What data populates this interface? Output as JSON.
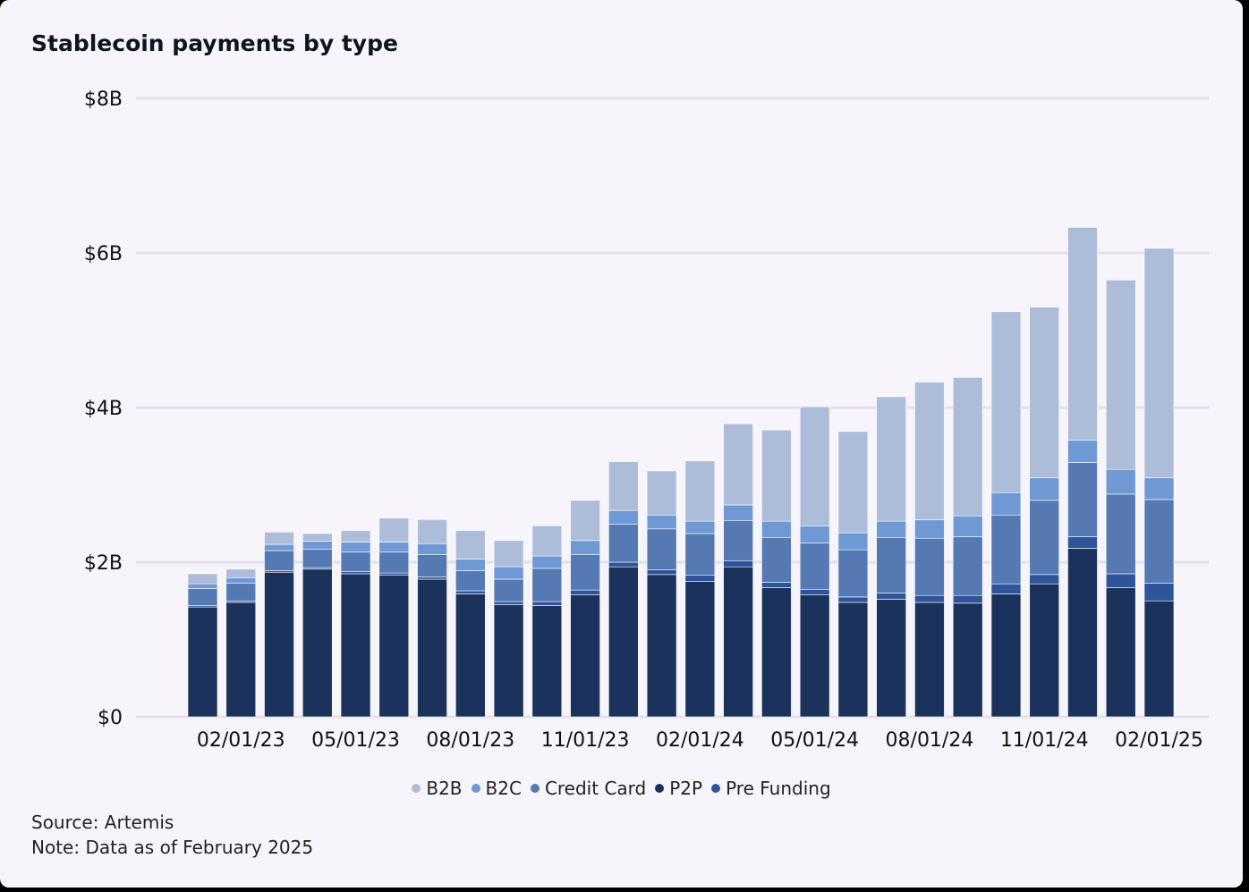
{
  "title": "Stablecoin payments by type",
  "source": "Source: Artemis",
  "note": "Note: Data as of February 2025",
  "colors": {
    "B2B": "#adbdd9",
    "B2C": "#6f99d5",
    "Credit Card": "#5579b3",
    "P2P": "#1b335c",
    "Pre Funding": "#2e559b",
    "grid": "#e3e0ea"
  },
  "chart_data": {
    "type": "bar",
    "stacked": true,
    "title": "Stablecoin payments by type",
    "xlabel": "",
    "ylabel": "",
    "ylim": [
      0,
      8
    ],
    "y_unit": "billion USD",
    "y_ticks": [
      0,
      2,
      4,
      6,
      8
    ],
    "y_tick_labels": [
      "$0",
      "$2B",
      "$4B",
      "$6B",
      "$8B"
    ],
    "x_tick_labels": [
      "02/01/23",
      "05/01/23",
      "08/01/23",
      "11/01/23",
      "02/01/24",
      "05/01/24",
      "08/01/24",
      "11/01/24",
      "02/01/25"
    ],
    "grid": true,
    "legend_position": "bottom",
    "categories": [
      "01/01/23",
      "02/01/23",
      "03/01/23",
      "04/01/23",
      "05/01/23",
      "06/01/23",
      "07/01/23",
      "08/01/23",
      "09/01/23",
      "10/01/23",
      "11/01/23",
      "12/01/23",
      "01/01/24",
      "02/01/24",
      "03/01/24",
      "04/01/24",
      "05/01/24",
      "06/01/24",
      "07/01/24",
      "08/01/24",
      "09/01/24",
      "10/01/24",
      "11/01/24",
      "12/01/24",
      "01/01/25",
      "02/01/25"
    ],
    "series": [
      {
        "name": "P2P",
        "values": [
          1.42,
          1.48,
          1.87,
          1.91,
          1.85,
          1.83,
          1.78,
          1.59,
          1.45,
          1.44,
          1.58,
          1.94,
          1.84,
          1.75,
          1.94,
          1.67,
          1.58,
          1.48,
          1.52,
          1.48,
          1.47,
          1.59,
          1.72,
          2.18,
          1.67,
          1.5
        ]
      },
      {
        "name": "Pre Funding",
        "values": [
          0.02,
          0.02,
          0.02,
          0.02,
          0.03,
          0.03,
          0.03,
          0.04,
          0.04,
          0.05,
          0.06,
          0.06,
          0.06,
          0.08,
          0.08,
          0.07,
          0.07,
          0.07,
          0.08,
          0.09,
          0.1,
          0.13,
          0.12,
          0.15,
          0.18,
          0.23
        ]
      },
      {
        "name": "Credit Card",
        "values": [
          0.22,
          0.23,
          0.26,
          0.24,
          0.25,
          0.27,
          0.29,
          0.26,
          0.29,
          0.43,
          0.46,
          0.49,
          0.53,
          0.54,
          0.52,
          0.58,
          0.6,
          0.61,
          0.72,
          0.74,
          0.76,
          0.89,
          0.96,
          0.96,
          1.03,
          1.08
        ]
      },
      {
        "name": "B2C",
        "values": [
          0.06,
          0.07,
          0.08,
          0.1,
          0.13,
          0.13,
          0.14,
          0.15,
          0.16,
          0.16,
          0.18,
          0.18,
          0.18,
          0.16,
          0.2,
          0.21,
          0.22,
          0.22,
          0.21,
          0.24,
          0.27,
          0.29,
          0.29,
          0.29,
          0.32,
          0.28
        ]
      },
      {
        "name": "B2B",
        "values": [
          0.13,
          0.11,
          0.16,
          0.1,
          0.15,
          0.31,
          0.31,
          0.37,
          0.34,
          0.39,
          0.52,
          0.63,
          0.57,
          0.78,
          1.05,
          1.18,
          1.54,
          1.31,
          1.61,
          1.78,
          1.79,
          2.34,
          2.21,
          2.75,
          2.45,
          2.97
        ]
      }
    ]
  },
  "legend": [
    {
      "label": "B2B",
      "key": "B2B"
    },
    {
      "label": "B2C",
      "key": "B2C"
    },
    {
      "label": "Credit Card",
      "key": "Credit Card"
    },
    {
      "label": "P2P",
      "key": "P2P"
    },
    {
      "label": "Pre Funding",
      "key": "Pre Funding"
    }
  ]
}
